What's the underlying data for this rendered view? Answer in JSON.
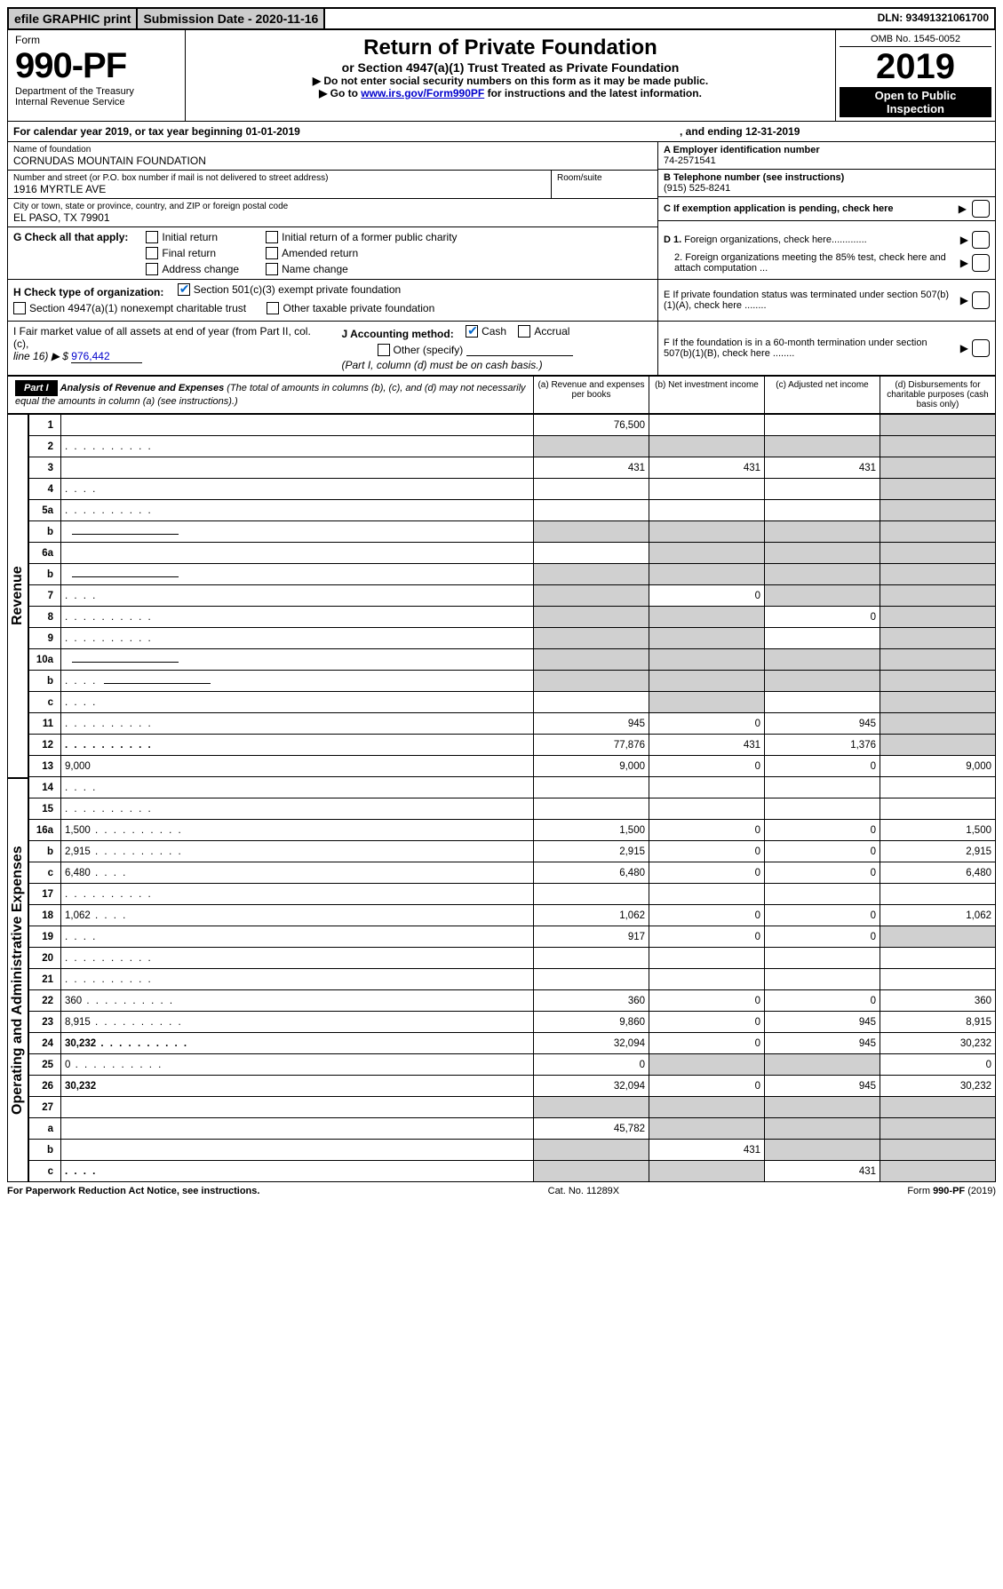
{
  "topbar": {
    "efile": "efile GRAPHIC print",
    "submission": "Submission Date - 2020-11-16",
    "dln": "DLN: 93491321061700"
  },
  "header": {
    "form_word": "Form",
    "form_no": "990-PF",
    "dept1": "Department of the Treasury",
    "dept2": "Internal Revenue Service",
    "title": "Return of Private Foundation",
    "subtitle": "or Section 4947(a)(1) Trust Treated as Private Foundation",
    "instr1": "▶ Do not enter social security numbers on this form as it may be made public.",
    "instr2_pre": "▶ Go to ",
    "instr2_link": "www.irs.gov/Form990PF",
    "instr2_post": " for instructions and the latest information.",
    "omb": "OMB No. 1545-0052",
    "year": "2019",
    "open1": "Open to Public",
    "open2": "Inspection"
  },
  "cal": {
    "pre": "For calendar year 2019, or tax year beginning 01-01-2019",
    "mid": ", and ending 12-31-2019"
  },
  "id": {
    "name_lbl": "Name of foundation",
    "name": "CORNUDAS MOUNTAIN FOUNDATION",
    "addr_lbl": "Number and street (or P.O. box number if mail is not delivered to street address)",
    "addr": "1916 MYRTLE AVE",
    "room_lbl": "Room/suite",
    "city_lbl": "City or town, state or province, country, and ZIP or foreign postal code",
    "city": "EL PASO, TX  79901",
    "a_lbl": "A Employer identification number",
    "a_val": "74-2571541",
    "b_lbl": "B Telephone number (see instructions)",
    "b_val": "(915) 525-8241",
    "c_lbl": "C If exemption application is pending, check here",
    "d1": "D 1. Foreign organizations, check here.............",
    "d2": "2. Foreign organizations meeting the 85% test, check here and attach computation ...",
    "e": "E  If private foundation status was terminated under section 507(b)(1)(A), check here ........",
    "f": "F  If the foundation is in a 60-month termination under section 507(b)(1)(B), check here ........"
  },
  "g": {
    "lbl": "G Check all that apply:",
    "opts": [
      "Initial return",
      "Final return",
      "Address change",
      "Initial return of a former public charity",
      "Amended return",
      "Name change"
    ]
  },
  "h": {
    "lbl": "H Check type of organization:",
    "o1": "Section 501(c)(3) exempt private foundation",
    "o2": "Section 4947(a)(1) nonexempt charitable trust",
    "o3": "Other taxable private foundation"
  },
  "i": {
    "lbl1": "I Fair market value of all assets at end of year (from Part II, col. (c),",
    "lbl2": "line 16) ▶ $",
    "val": "976,442"
  },
  "j": {
    "lbl": "J Accounting method:",
    "o1": "Cash",
    "o2": "Accrual",
    "o3": "Other (specify)",
    "note": "(Part I, column (d) must be on cash basis.)"
  },
  "part1": {
    "hdr": "Part I",
    "title": "Analysis of Revenue and Expenses",
    "title_note": "(The total of amounts in columns (b), (c), and (d) may not necessarily equal the amounts in column (a) (see instructions).)",
    "cols": {
      "a": "(a)   Revenue and expenses per books",
      "b": "(b)  Net investment income",
      "c": "(c)  Adjusted net income",
      "d": "(d)  Disbursements for charitable purposes (cash basis only)"
    }
  },
  "sections": {
    "rev": "Revenue",
    "exp": "Operating and Administrative Expenses"
  },
  "rows": [
    {
      "n": "1",
      "d": "",
      "a": "76,500",
      "b": "",
      "c": "",
      "shade": [
        "d"
      ]
    },
    {
      "n": "2",
      "d": "",
      "dots": true,
      "a": "",
      "b": "",
      "c": "",
      "shade": [
        "a",
        "b",
        "c",
        "d"
      ]
    },
    {
      "n": "3",
      "d": "",
      "a": "431",
      "b": "431",
      "c": "431",
      "shade": [
        "d"
      ]
    },
    {
      "n": "4",
      "d": "",
      "dots": "short",
      "a": "",
      "b": "",
      "c": "",
      "shade": [
        "d"
      ]
    },
    {
      "n": "5a",
      "d": "",
      "dots": true,
      "a": "",
      "b": "",
      "c": "",
      "shade": [
        "d"
      ]
    },
    {
      "n": "b",
      "d": "",
      "line": true,
      "a": "",
      "b": "",
      "c": "",
      "shade": [
        "a",
        "b",
        "c",
        "d"
      ]
    },
    {
      "n": "6a",
      "d": "",
      "a": "",
      "b": "",
      "c": "",
      "shade": [
        "b",
        "c",
        "d"
      ]
    },
    {
      "n": "b",
      "d": "",
      "line": true,
      "a": "",
      "b": "",
      "c": "",
      "shade": [
        "a",
        "b",
        "c",
        "d"
      ]
    },
    {
      "n": "7",
      "d": "",
      "dots": "short",
      "a": "",
      "b": "0",
      "c": "",
      "shade": [
        "a",
        "c",
        "d"
      ]
    },
    {
      "n": "8",
      "d": "",
      "dots": true,
      "a": "",
      "b": "",
      "c": "0",
      "shade": [
        "a",
        "b",
        "d"
      ]
    },
    {
      "n": "9",
      "d": "",
      "dots": true,
      "a": "",
      "b": "",
      "c": "",
      "shade": [
        "a",
        "b",
        "d"
      ]
    },
    {
      "n": "10a",
      "d": "",
      "line": true,
      "a": "",
      "b": "",
      "c": "",
      "shade": [
        "a",
        "b",
        "c",
        "d"
      ]
    },
    {
      "n": "b",
      "d": "",
      "dots": "short",
      "line": true,
      "a": "",
      "b": "",
      "c": "",
      "shade": [
        "a",
        "b",
        "c",
        "d"
      ]
    },
    {
      "n": "c",
      "d": "",
      "dots": "short",
      "a": "",
      "b": "",
      "c": "",
      "shade": [
        "b",
        "d"
      ]
    },
    {
      "n": "11",
      "d": "",
      "dots": true,
      "a": "945",
      "b": "0",
      "c": "945",
      "shade": [
        "d"
      ]
    },
    {
      "n": "12",
      "d": "",
      "bold": true,
      "dots": true,
      "a": "77,876",
      "b": "431",
      "c": "1,376",
      "shade": [
        "d"
      ]
    },
    {
      "n": "13",
      "d": "9,000",
      "a": "9,000",
      "b": "0",
      "c": "0"
    },
    {
      "n": "14",
      "d": "",
      "dots": "short",
      "a": "",
      "b": "",
      "c": ""
    },
    {
      "n": "15",
      "d": "",
      "dots": true,
      "a": "",
      "b": "",
      "c": ""
    },
    {
      "n": "16a",
      "d": "1,500",
      "dots": true,
      "a": "1,500",
      "b": "0",
      "c": "0"
    },
    {
      "n": "b",
      "d": "2,915",
      "dots": true,
      "a": "2,915",
      "b": "0",
      "c": "0"
    },
    {
      "n": "c",
      "d": "6,480",
      "dots": "short",
      "a": "6,480",
      "b": "0",
      "c": "0"
    },
    {
      "n": "17",
      "d": "",
      "dots": true,
      "a": "",
      "b": "",
      "c": ""
    },
    {
      "n": "18",
      "d": "1,062",
      "dots": "short",
      "a": "1,062",
      "b": "0",
      "c": "0"
    },
    {
      "n": "19",
      "d": "",
      "dots": "short",
      "a": "917",
      "b": "0",
      "c": "0",
      "shade": [
        "d"
      ]
    },
    {
      "n": "20",
      "d": "",
      "dots": true,
      "a": "",
      "b": "",
      "c": ""
    },
    {
      "n": "21",
      "d": "",
      "dots": true,
      "a": "",
      "b": "",
      "c": ""
    },
    {
      "n": "22",
      "d": "360",
      "dots": true,
      "a": "360",
      "b": "0",
      "c": "0"
    },
    {
      "n": "23",
      "d": "8,915",
      "dots": true,
      "a": "9,860",
      "b": "0",
      "c": "945"
    },
    {
      "n": "24",
      "d": "30,232",
      "bold": true,
      "dots": true,
      "a": "32,094",
      "b": "0",
      "c": "945"
    },
    {
      "n": "25",
      "d": "0",
      "dots": true,
      "a": "0",
      "b": "",
      "c": "",
      "shade": [
        "b",
        "c"
      ]
    },
    {
      "n": "26",
      "d": "30,232",
      "bold": true,
      "a": "32,094",
      "b": "0",
      "c": "945"
    },
    {
      "n": "27",
      "d": "",
      "a": "",
      "b": "",
      "c": "",
      "shade": [
        "a",
        "b",
        "c",
        "d"
      ]
    },
    {
      "n": "a",
      "d": "",
      "bold": true,
      "a": "45,782",
      "b": "",
      "c": "",
      "shade": [
        "b",
        "c",
        "d"
      ]
    },
    {
      "n": "b",
      "d": "",
      "bold": true,
      "a": "",
      "b": "431",
      "c": "",
      "shade": [
        "a",
        "c",
        "d"
      ]
    },
    {
      "n": "c",
      "d": "",
      "bold": true,
      "dots": "short",
      "a": "",
      "b": "",
      "c": "431",
      "shade": [
        "a",
        "b",
        "d"
      ]
    }
  ],
  "footer": {
    "left": "For Paperwork Reduction Act Notice, see instructions.",
    "mid": "Cat. No. 11289X",
    "right": "Form 990-PF (2019)"
  }
}
